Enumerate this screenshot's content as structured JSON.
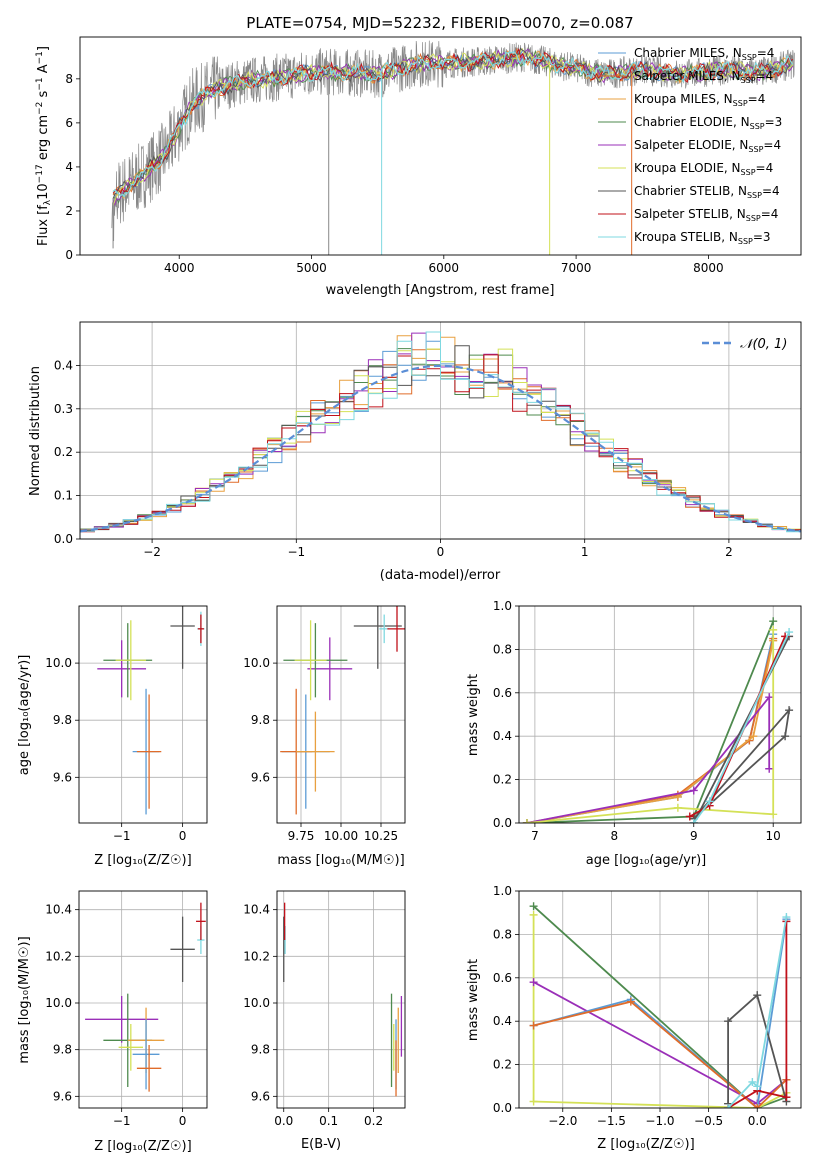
{
  "colors": {
    "Chabrier MILES": "#5b9bd5",
    "Salpeter MILES": "#e06c2a",
    "Kroupa MILES": "#e8a040",
    "Chabrier ELODIE": "#4e8a4e",
    "Salpeter ELODIE": "#9a2fb8",
    "Kroupa ELODIE": "#d4e157",
    "Chabrier STELIB": "#555555",
    "Salpeter STELIB": "#c0101a",
    "Kroupa STELIB": "#7fd8e0"
  },
  "chart_data": [
    {
      "id": "spectrum",
      "type": "line",
      "title": "PLATE=0754, MJD=52232, FIBERID=0070, z=0.087",
      "xlabel": "wavelength [Angstrom, rest frame]",
      "ylabel_main": "Flux [f",
      "ylabel_sub": "λ",
      "ylabel_mid": "10",
      "ylabel_exp1": "−17",
      "ylabel_unit": " erg cm",
      "ylabel_exp2": "−2",
      "ylabel_s": " s",
      "ylabel_exp3": "−1",
      "ylabel_end": " A",
      "ylabel_exp4": "−1",
      "ylabel_close": "]",
      "xlim": [
        3250,
        8700
      ],
      "ylim": [
        0,
        9.9
      ],
      "xticks": [
        4000,
        5000,
        6000,
        7000,
        8000
      ],
      "yticks": [
        0,
        2,
        4,
        6,
        8
      ],
      "legend_position": "right",
      "legend": [
        {
          "imf": "Chabrier MILES",
          "n": "4"
        },
        {
          "imf": "Salpeter MILES",
          "n": "4"
        },
        {
          "imf": "Kroupa MILES",
          "n": "4"
        },
        {
          "imf": "Chabrier ELODIE",
          "n": "3"
        },
        {
          "imf": "Salpeter ELODIE",
          "n": "4"
        },
        {
          "imf": "Kroupa ELODIE",
          "n": "4"
        },
        {
          "imf": "Chabrier STELIB",
          "n": "4"
        },
        {
          "imf": "Salpeter STELIB",
          "n": "4"
        },
        {
          "imf": "Kroupa STELIB",
          "n": "3"
        }
      ],
      "legend_n_prefix": "N",
      "legend_n_sub": "SSP",
      "legend_n_eq": "=",
      "continuum_x": [
        3500,
        3700,
        3900,
        4000,
        4100,
        4300,
        4500,
        4800,
        5000,
        5200,
        5500,
        5800,
        6000,
        6300,
        6600,
        6900,
        7200,
        7500,
        7800,
        8100,
        8400,
        8650
      ],
      "continuum_y": [
        2.6,
        3.5,
        4.6,
        5.8,
        6.9,
        7.6,
        7.9,
        8.1,
        8.3,
        8.3,
        8.2,
        8.7,
        8.7,
        8.8,
        9.0,
        8.6,
        8.2,
        8.4,
        8.2,
        8.4,
        8.3,
        8.7
      ],
      "spikes": [
        {
          "x": 3500,
          "y": 0.3
        },
        {
          "x": 5130,
          "y": 0
        },
        {
          "x": 5530,
          "y": 0
        },
        {
          "x": 6800,
          "y": 0
        },
        {
          "x": 7420,
          "y": 0
        }
      ]
    },
    {
      "id": "residuals",
      "type": "bar",
      "xlabel": "(data-model)/error",
      "ylabel": "Normed distribution",
      "xlim": [
        -2.5,
        2.5
      ],
      "ylim": [
        0,
        0.5
      ],
      "xticks": [
        -2,
        -1,
        0,
        1,
        2
      ],
      "xticklabels": [
        "−2",
        "−1",
        "0",
        "1",
        "2"
      ],
      "yticks": [
        0.0,
        0.1,
        0.2,
        0.3,
        0.4
      ],
      "yticklabels": [
        "0.0",
        "0.1",
        "0.2",
        "0.3",
        "0.4"
      ],
      "legend_position": "top-right",
      "legend_label": "𝒩(0, 1)",
      "bin_start": -2.5,
      "bin_width": 0.1,
      "curve_color": "#5b8ed6"
    },
    {
      "id": "z-age",
      "type": "scatter",
      "xlabel": "Z [log₁₀(Z/Z☉)]",
      "ylabel": "age  [log₁₀(age/yr)]",
      "xlim": [
        -1.7,
        0.4
      ],
      "ylim": [
        9.44,
        10.2
      ],
      "xticks": [
        -1,
        0
      ],
      "xticklabels": [
        "−1",
        "0"
      ],
      "yticks": [
        9.6,
        9.8,
        10.0
      ],
      "yticklabels": [
        "9.6",
        "9.8",
        "10.0"
      ],
      "points": [
        {
          "s": "Chabrier MILES",
          "x": -0.6,
          "y": 9.69,
          "xe": 0.22,
          "ye": 0.22
        },
        {
          "s": "Salpeter MILES",
          "x": -0.55,
          "y": 9.69,
          "xe": 0.2,
          "ye": 0.2
        },
        {
          "s": "Salpeter ELODIE",
          "x": -1.0,
          "y": 9.98,
          "xe": 0.4,
          "ye": 0.1
        },
        {
          "s": "Chabrier ELODIE",
          "x": -0.9,
          "y": 10.01,
          "xe": 0.4,
          "ye": 0.13
        },
        {
          "s": "Kroupa ELODIE",
          "x": -0.85,
          "y": 10.01,
          "xe": 0.25,
          "ye": 0.14
        },
        {
          "s": "Chabrier STELIB",
          "x": 0.0,
          "y": 10.13,
          "xe": 0.2,
          "ye": 0.15
        },
        {
          "s": "Kroupa STELIB",
          "x": 0.3,
          "y": 10.12,
          "xe": 0.06,
          "ye": 0.06
        },
        {
          "s": "Salpeter STELIB",
          "x": 0.3,
          "y": 10.12,
          "xe": 0.05,
          "ye": 0.05
        }
      ]
    },
    {
      "id": "mass-age",
      "type": "scatter",
      "xlabel": "mass [log₁₀(M/M☉)]",
      "ylabel": "",
      "xlim": [
        9.6,
        10.4
      ],
      "ylim": [
        9.44,
        10.2
      ],
      "xticks": [
        9.75,
        10.0,
        10.25
      ],
      "xticklabels": [
        "9.75",
        "10.00",
        "10.25"
      ],
      "yticks": [
        9.6,
        9.8,
        10.0
      ],
      "yticklabels": [
        "9.6",
        "9.8",
        "10.0"
      ],
      "points": [
        {
          "s": "Chabrier MILES",
          "x": 9.78,
          "y": 9.69,
          "xe": 0.15,
          "ye": 0.2
        },
        {
          "s": "Salpeter MILES",
          "x": 9.72,
          "y": 9.69,
          "xe": 0.1,
          "ye": 0.22
        },
        {
          "s": "Kroupa MILES",
          "x": 9.84,
          "y": 9.69,
          "xe": 0.12,
          "ye": 0.14
        },
        {
          "s": "Salpeter ELODIE",
          "x": 9.93,
          "y": 9.98,
          "xe": 0.14,
          "ye": 0.11
        },
        {
          "s": "Chabrier ELODIE",
          "x": 9.84,
          "y": 10.01,
          "xe": 0.2,
          "ye": 0.13
        },
        {
          "s": "Kroupa ELODIE",
          "x": 9.81,
          "y": 10.01,
          "xe": 0.1,
          "ye": 0.14
        },
        {
          "s": "Chabrier STELIB",
          "x": 10.23,
          "y": 10.13,
          "xe": 0.15,
          "ye": 0.15
        },
        {
          "s": "Kroupa STELIB",
          "x": 10.27,
          "y": 10.12,
          "xe": 0.03,
          "ye": 0.05
        },
        {
          "s": "Salpeter STELIB",
          "x": 10.35,
          "y": 10.12,
          "xe": 0.06,
          "ye": 0.08
        }
      ]
    },
    {
      "id": "age-weight",
      "type": "line",
      "xlabel": "age  [log₁₀(age/yr)]",
      "ylabel": "mass weight",
      "xlim": [
        6.8,
        10.35
      ],
      "ylim": [
        0,
        1.0
      ],
      "xticks": [
        7,
        8,
        9,
        10
      ],
      "xticklabels": [
        "7",
        "8",
        "9",
        "10"
      ],
      "yticks": [
        0.0,
        0.2,
        0.4,
        0.6,
        0.8,
        1.0
      ],
      "yticklabels": [
        "0.0",
        "0.2",
        "0.4",
        "0.6",
        "0.8",
        "1.0"
      ],
      "series": [
        {
          "s": "Chabrier MILES",
          "x": [
            6.9,
            8.8,
            9.7,
            10.0
          ],
          "y": [
            0.0,
            0.12,
            0.38,
            0.87
          ]
        },
        {
          "s": "Salpeter MILES",
          "x": [
            6.9,
            8.8,
            9.7,
            10.0
          ],
          "y": [
            0.0,
            0.13,
            0.38,
            0.85
          ]
        },
        {
          "s": "Kroupa MILES",
          "x": [
            6.9,
            8.8,
            9.75,
            10.0
          ],
          "y": [
            0.0,
            0.12,
            0.4,
            0.84
          ]
        },
        {
          "s": "Chabrier ELODIE",
          "x": [
            6.9,
            9.0,
            10.0
          ],
          "y": [
            0.0,
            0.03,
            0.93
          ]
        },
        {
          "s": "Salpeter ELODIE",
          "x": [
            6.9,
            9.0,
            9.95,
            9.95
          ],
          "y": [
            0.0,
            0.15,
            0.58,
            0.25
          ]
        },
        {
          "s": "Kroupa ELODIE",
          "x": [
            6.9,
            8.8,
            10.0,
            10.0
          ],
          "y": [
            0.0,
            0.07,
            0.04,
            0.89
          ]
        },
        {
          "s": "Chabrier STELIB",
          "x": [
            9.0,
            10.15,
            10.2,
            9.0
          ],
          "y": [
            0.02,
            0.4,
            0.52,
            0.02
          ]
        },
        {
          "s": "Chabrier STELIB",
          "x": [
            9.0,
            10.2
          ],
          "y": [
            0.0,
            0.86
          ]
        },
        {
          "s": "Salpeter STELIB",
          "x": [
            8.95,
            9.2,
            10.15
          ],
          "y": [
            0.03,
            0.08,
            0.86
          ]
        },
        {
          "s": "Kroupa STELIB",
          "x": [
            9.0,
            9.2,
            10.2
          ],
          "y": [
            0.0,
            0.1,
            0.88
          ]
        }
      ]
    },
    {
      "id": "z-mass",
      "type": "scatter",
      "xlabel": "Z [log₁₀(Z/Z☉)]",
      "ylabel": "mass [log₁₀(M/M☉)]",
      "xlim": [
        -1.7,
        0.4
      ],
      "ylim": [
        9.55,
        10.48
      ],
      "xticks": [
        -1,
        0
      ],
      "xticklabels": [
        "−1",
        "0"
      ],
      "yticks": [
        9.6,
        9.8,
        10.0,
        10.2,
        10.4
      ],
      "yticklabels": [
        "9.6",
        "9.8",
        "10.0",
        "10.2",
        "10.4"
      ],
      "points": [
        {
          "s": "Salpeter ELODIE",
          "x": -1.0,
          "y": 9.93,
          "xe": 0.6,
          "ye": 0.1
        },
        {
          "s": "Chabrier ELODIE",
          "x": -0.9,
          "y": 9.84,
          "xe": 0.4,
          "ye": 0.2
        },
        {
          "s": "Kroupa ELODIE",
          "x": -0.85,
          "y": 9.81,
          "xe": 0.2,
          "ye": 0.1
        },
        {
          "s": "Kroupa MILES",
          "x": -0.6,
          "y": 9.84,
          "xe": 0.3,
          "ye": 0.14
        },
        {
          "s": "Chabrier MILES",
          "x": -0.6,
          "y": 9.78,
          "xe": 0.22,
          "ye": 0.15
        },
        {
          "s": "Salpeter MILES",
          "x": -0.55,
          "y": 9.72,
          "xe": 0.2,
          "ye": 0.1
        },
        {
          "s": "Chabrier STELIB",
          "x": 0.0,
          "y": 10.23,
          "xe": 0.2,
          "ye": 0.14
        },
        {
          "s": "Kroupa STELIB",
          "x": 0.3,
          "y": 10.27,
          "xe": 0.06,
          "ye": 0.06
        },
        {
          "s": "Salpeter STELIB",
          "x": 0.3,
          "y": 10.35,
          "xe": 0.08,
          "ye": 0.08
        }
      ]
    },
    {
      "id": "ebv-mass",
      "type": "scatter",
      "xlabel": "E(B-V)",
      "ylabel": "",
      "xlim": [
        -0.015,
        0.27
      ],
      "ylim": [
        9.55,
        10.48
      ],
      "xticks": [
        0.0,
        0.1,
        0.2
      ],
      "xticklabels": [
        "0.0",
        "0.1",
        "0.2"
      ],
      "yticks": [
        9.6,
        9.8,
        10.0,
        10.2,
        10.4
      ],
      "yticklabels": [
        "9.6",
        "9.8",
        "10.0",
        "10.2",
        "10.4"
      ],
      "points": [
        {
          "s": "Chabrier STELIB",
          "x": 0.0,
          "y": 10.23,
          "xe": 0,
          "ye": 0.14
        },
        {
          "s": "Kroupa STELIB",
          "x": 0.003,
          "y": 10.27,
          "xe": 0,
          "ye": 0.06
        },
        {
          "s": "Salpeter STELIB",
          "x": 0.002,
          "y": 10.35,
          "xe": 0,
          "ye": 0.08
        },
        {
          "s": "Chabrier ELODIE",
          "x": 0.24,
          "y": 9.84,
          "xe": 0,
          "ye": 0.2
        },
        {
          "s": "Kroupa ELODIE",
          "x": 0.245,
          "y": 9.81,
          "xe": 0,
          "ye": 0.1
        },
        {
          "s": "Chabrier MILES",
          "x": 0.25,
          "y": 9.78,
          "xe": 0,
          "ye": 0.15
        },
        {
          "s": "Salpeter MILES",
          "x": 0.25,
          "y": 9.72,
          "xe": 0,
          "ye": 0.12
        },
        {
          "s": "Kroupa MILES",
          "x": 0.255,
          "y": 9.84,
          "xe": 0,
          "ye": 0.14
        },
        {
          "s": "Salpeter ELODIE",
          "x": 0.262,
          "y": 9.9,
          "xe": 0,
          "ye": 0.13
        }
      ]
    },
    {
      "id": "z-weight",
      "type": "line",
      "xlabel": "Z [log₁₀(Z/Z☉)]",
      "ylabel": "mass weight",
      "xlim": [
        -2.45,
        0.45
      ],
      "ylim": [
        0,
        1.0
      ],
      "xticks": [
        -2.0,
        -1.5,
        -1.0,
        -0.5,
        0.0
      ],
      "xticklabels": [
        "−2.0",
        "−1.5",
        "−1.0",
        "−0.5",
        "0.0"
      ],
      "yticks": [
        0.0,
        0.2,
        0.4,
        0.6,
        0.8,
        1.0
      ],
      "yticklabels": [
        "0.0",
        "0.2",
        "0.4",
        "0.6",
        "0.8",
        "1.0"
      ],
      "series": [
        {
          "s": "Chabrier ELODIE",
          "x": [
            -2.3,
            0.0,
            0.3
          ],
          "y": [
            0.93,
            0.0,
            0.05
          ]
        },
        {
          "s": "Kroupa ELODIE",
          "x": [
            -2.3,
            -2.3,
            0.0,
            0.3
          ],
          "y": [
            0.89,
            0.03,
            0.0,
            0.07
          ]
        },
        {
          "s": "Salpeter ELODIE",
          "x": [
            -2.3,
            0.0,
            0.3
          ],
          "y": [
            0.58,
            0.02,
            0.13
          ]
        },
        {
          "s": "Chabrier MILES",
          "x": [
            -2.3,
            -1.3,
            0.0,
            0.3
          ],
          "y": [
            0.38,
            0.5,
            0.0,
            0.87
          ]
        },
        {
          "s": "Salpeter MILES",
          "x": [
            -2.3,
            -1.3,
            0.0,
            0.3
          ],
          "y": [
            0.38,
            0.49,
            0.0,
            0.13
          ]
        },
        {
          "s": "Chabrier STELIB",
          "x": [
            -0.3,
            -0.3,
            0.0,
            0.3
          ],
          "y": [
            0.02,
            0.4,
            0.52,
            0.03
          ]
        },
        {
          "s": "Salpeter STELIB",
          "x": [
            -0.3,
            0.0,
            0.3,
            0.3
          ],
          "y": [
            0.0,
            0.08,
            0.05,
            0.86
          ]
        },
        {
          "s": "Kroupa STELIB",
          "x": [
            -0.3,
            -0.05,
            0.0,
            0.3
          ],
          "y": [
            0.0,
            0.12,
            0.1,
            0.88
          ]
        }
      ]
    }
  ]
}
